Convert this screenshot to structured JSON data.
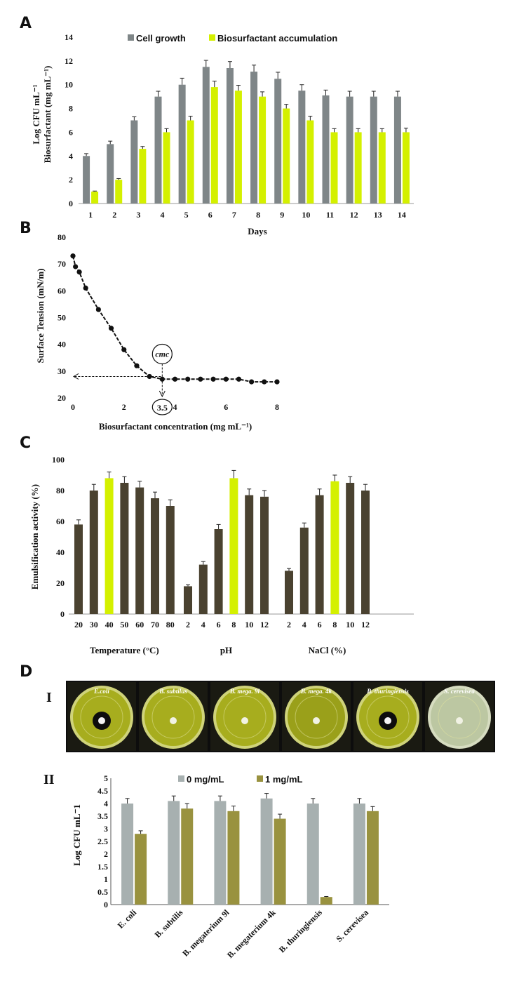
{
  "colors": {
    "cell_growth": "#7f8688",
    "biosurfactant": "#d4f000",
    "emulsification": "#4a4230",
    "emulsification_highlight": "#d4f000",
    "zero_mg": "#a7b0b0",
    "one_mg": "#99923f"
  },
  "panel_labels": {
    "a": "A",
    "b": "B",
    "c": "C",
    "d": "D",
    "d_i": "I",
    "d_ii": "II"
  },
  "chart_data": [
    {
      "id": "A",
      "type": "bar",
      "categories": [
        "1",
        "2",
        "3",
        "4",
        "5",
        "6",
        "7",
        "8",
        "9",
        "10",
        "11",
        "12",
        "13",
        "14"
      ],
      "series": [
        {
          "name": "Cell growth",
          "values": [
            4,
            5,
            7,
            9,
            10,
            11.5,
            11.4,
            11.1,
            10.5,
            9.5,
            9.1,
            9,
            9,
            9
          ],
          "errors": [
            0.2,
            0.25,
            0.3,
            0.45,
            0.55,
            0.55,
            0.55,
            0.55,
            0.55,
            0.5,
            0.45,
            0.45,
            0.45,
            0.45
          ]
        },
        {
          "name": "Biosurfactant accumulation",
          "values": [
            1,
            2,
            4.6,
            6,
            7,
            9.8,
            9.5,
            9,
            8,
            7,
            6,
            6,
            6,
            6
          ],
          "errors": [
            0.05,
            0.1,
            0.2,
            0.3,
            0.35,
            0.5,
            0.45,
            0.4,
            0.35,
            0.35,
            0.3,
            0.3,
            0.3,
            0.35
          ]
        }
      ],
      "xlabel": "Days",
      "ylabel_line1": "Log CFU mL⁻¹",
      "ylabel_line2": "Biosurfactant (mg mL⁻¹)",
      "ylim": [
        0,
        14
      ],
      "yticks": [
        "0",
        "2",
        "4",
        "6",
        "8",
        "10",
        "12",
        "14"
      ],
      "legend": [
        "Cell growth",
        "Biosurfactant accumulation"
      ]
    },
    {
      "id": "B",
      "type": "line",
      "x": [
        0,
        0.1,
        0.25,
        0.5,
        1,
        1.5,
        2,
        2.5,
        3,
        3.5,
        4,
        4.5,
        5,
        5.5,
        6,
        6.5,
        7,
        7.5,
        8
      ],
      "y": [
        73,
        69,
        67,
        61,
        53,
        46,
        38,
        32,
        28,
        27,
        27,
        27,
        27,
        27,
        27,
        27,
        26,
        26,
        26
      ],
      "xlabel": "Biosurfactant concentration (mg mL⁻¹)",
      "ylabel": "Surface Tension (mN/m)",
      "xlim": [
        0,
        8
      ],
      "ylim": [
        20,
        80
      ],
      "xticks": [
        "0",
        "2",
        "4",
        "6",
        "8"
      ],
      "yticks": [
        "20",
        "30",
        "40",
        "50",
        "60",
        "70",
        "80"
      ],
      "annotations": {
        "cmc_label": "cmc",
        "cmc_value": "3.5",
        "cmc_x": 3.5,
        "cmc_y": 28
      }
    },
    {
      "id": "C",
      "type": "bar",
      "groups": [
        {
          "name": "Temperature (°C)",
          "categories": [
            "20",
            "30",
            "40",
            "50",
            "60",
            "70",
            "80"
          ],
          "values": [
            58,
            80,
            88,
            85,
            82,
            75,
            70
          ],
          "errors": [
            3,
            4,
            4,
            4,
            4,
            4,
            4
          ],
          "highlight_index": 2
        },
        {
          "name": "pH",
          "categories": [
            "2",
            "4",
            "6",
            "8",
            "10",
            "12"
          ],
          "values": [
            18,
            32,
            55,
            88,
            77,
            76
          ],
          "errors": [
            1,
            2,
            3,
            5,
            4,
            4
          ],
          "highlight_index": 3
        },
        {
          "name": "NaCl (%)",
          "categories": [
            "2",
            "4",
            "6",
            "8",
            "10",
            "12"
          ],
          "values": [
            28,
            56,
            77,
            86,
            85,
            80
          ],
          "errors": [
            1.5,
            3,
            4,
            4,
            4,
            4
          ],
          "highlight_index": 3
        }
      ],
      "ylabel": "Emulsification activity (%)",
      "ylim": [
        0,
        100
      ],
      "yticks": [
        "0",
        "20",
        "40",
        "60",
        "80",
        "100"
      ]
    },
    {
      "id": "D-II",
      "type": "bar",
      "categories": [
        "E. coli",
        "B. subtilis",
        "B. megaterium 9l",
        "B. megaterium 4k",
        "B. thuringiensis",
        "S. cerevisea"
      ],
      "series": [
        {
          "name": "0 mg/mL",
          "values": [
            4,
            4.1,
            4.1,
            4.2,
            4,
            4
          ],
          "errors": [
            0.2,
            0.2,
            0.2,
            0.2,
            0.2,
            0.2
          ]
        },
        {
          "name": "1 mg/mL",
          "values": [
            2.8,
            3.8,
            3.7,
            3.4,
            0.3,
            3.7
          ],
          "errors": [
            0.12,
            0.2,
            0.2,
            0.18,
            0.02,
            0.18
          ]
        }
      ],
      "ylabel": "Log CFU mL⁻1",
      "ylim": [
        0,
        5
      ],
      "yticks": [
        "0",
        "0.5",
        "1",
        "1.5",
        "2",
        "2.5",
        "3",
        "3.5",
        "4",
        "4.5",
        "5"
      ],
      "legend": [
        "0 mg/mL",
        "1 mg/mL"
      ]
    }
  ],
  "plates": [
    {
      "label": "E.coli",
      "has_zone": true
    },
    {
      "label": "B. subtilus",
      "has_zone": false
    },
    {
      "label": "B. mega. 9l",
      "has_zone": false
    },
    {
      "label": "B. mega. 4k",
      "has_zone": false
    },
    {
      "label": "B. thuringiensis",
      "has_zone": true
    },
    {
      "label": "S. cerevisea",
      "has_zone": false
    }
  ]
}
